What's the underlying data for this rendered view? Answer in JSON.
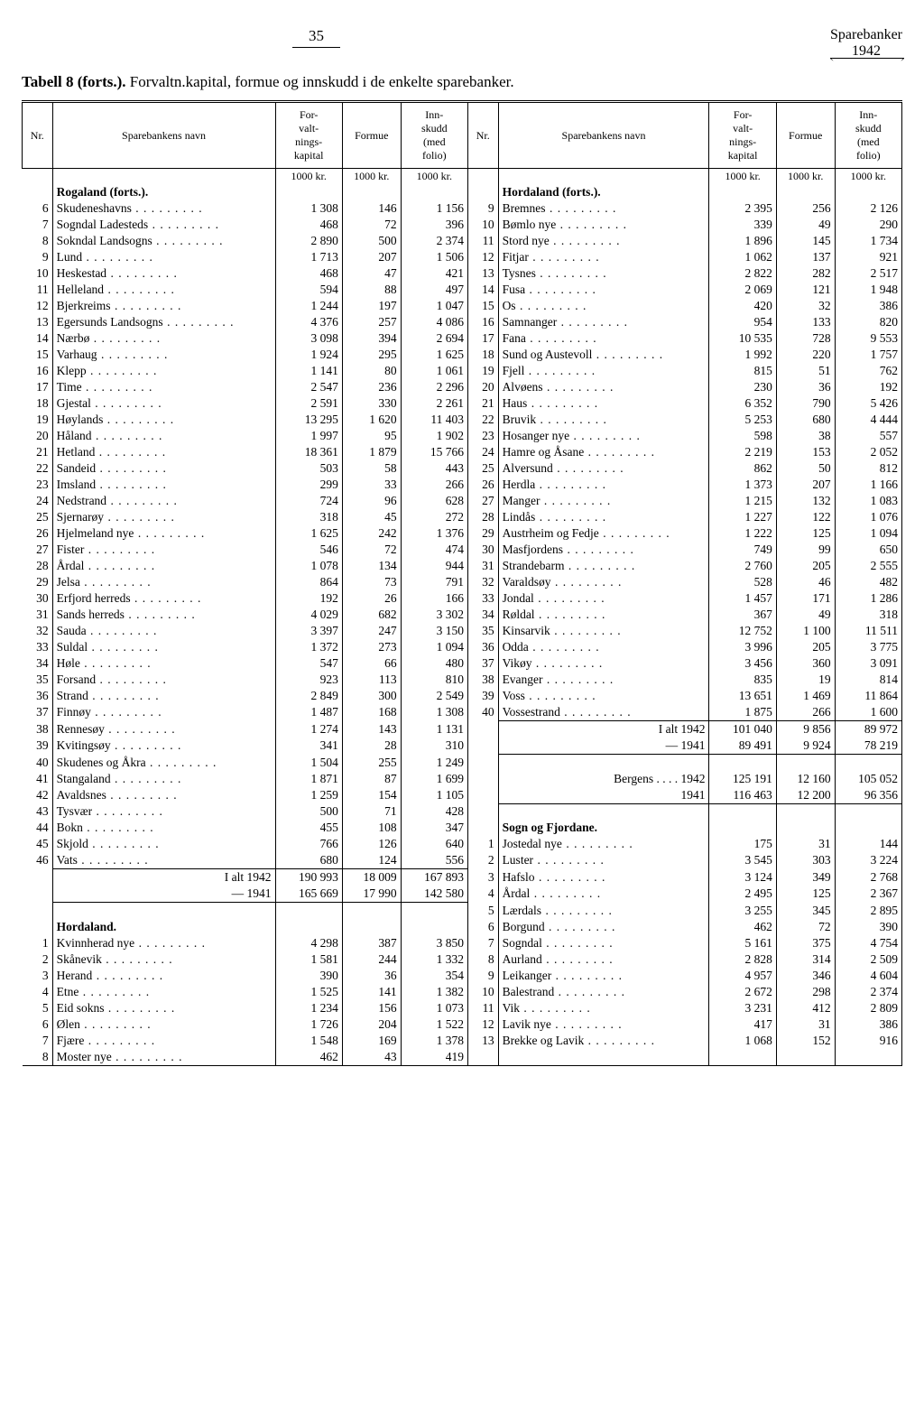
{
  "page_number": "35",
  "corner_title": "Sparebanker",
  "corner_year": "1942",
  "caption_bold": "Tabell 8 (forts.).",
  "caption_rest": "Forvaltn.kapital, formue og innskudd i de enkelte sparebanker.",
  "col_headers": {
    "nr": "Nr.",
    "name": "Sparebankens navn",
    "cap": "For-\nvalt-\nnings-\nkapital",
    "formue": "Formue",
    "inn": "Inn-\nskudd\n(med\nfolio)"
  },
  "units": "1000 kr.",
  "left": [
    {
      "section": "Rogaland (forts.)."
    },
    {
      "nr": 6,
      "name": "Skudeneshavns",
      "c": "1 308",
      "f": "146",
      "i": "1 156"
    },
    {
      "nr": 7,
      "name": "Sogndal Ladesteds",
      "c": "468",
      "f": "72",
      "i": "396"
    },
    {
      "nr": 8,
      "name": "Sokndal Landsogns",
      "c": "2 890",
      "f": "500",
      "i": "2 374"
    },
    {
      "nr": 9,
      "name": "Lund",
      "c": "1 713",
      "f": "207",
      "i": "1 506"
    },
    {
      "nr": 10,
      "name": "Heskestad",
      "c": "468",
      "f": "47",
      "i": "421"
    },
    {
      "nr": 11,
      "name": "Helleland",
      "c": "594",
      "f": "88",
      "i": "497"
    },
    {
      "nr": 12,
      "name": "Bjerkreims",
      "c": "1 244",
      "f": "197",
      "i": "1 047"
    },
    {
      "nr": 13,
      "name": "Egersunds Landsogns",
      "c": "4 376",
      "f": "257",
      "i": "4 086"
    },
    {
      "nr": 14,
      "name": "Nærbø",
      "c": "3 098",
      "f": "394",
      "i": "2 694"
    },
    {
      "nr": 15,
      "name": "Varhaug",
      "c": "1 924",
      "f": "295",
      "i": "1 625"
    },
    {
      "nr": 16,
      "name": "Klepp",
      "c": "1 141",
      "f": "80",
      "i": "1 061"
    },
    {
      "nr": 17,
      "name": "Time",
      "c": "2 547",
      "f": "236",
      "i": "2 296"
    },
    {
      "nr": 18,
      "name": "Gjestal",
      "c": "2 591",
      "f": "330",
      "i": "2 261"
    },
    {
      "nr": 19,
      "name": "Høylands",
      "c": "13 295",
      "f": "1 620",
      "i": "11 403"
    },
    {
      "nr": 20,
      "name": "Håland",
      "c": "1 997",
      "f": "95",
      "i": "1 902"
    },
    {
      "nr": 21,
      "name": "Hetland",
      "c": "18 361",
      "f": "1 879",
      "i": "15 766"
    },
    {
      "nr": 22,
      "name": "Sandeid",
      "c": "503",
      "f": "58",
      "i": "443"
    },
    {
      "nr": 23,
      "name": "Imsland",
      "c": "299",
      "f": "33",
      "i": "266"
    },
    {
      "nr": 24,
      "name": "Nedstrand",
      "c": "724",
      "f": "96",
      "i": "628"
    },
    {
      "nr": 25,
      "name": "Sjernarøy",
      "c": "318",
      "f": "45",
      "i": "272"
    },
    {
      "nr": 26,
      "name": "Hjelmeland nye",
      "c": "1 625",
      "f": "242",
      "i": "1 376"
    },
    {
      "nr": 27,
      "name": "Fister",
      "c": "546",
      "f": "72",
      "i": "474"
    },
    {
      "nr": 28,
      "name": "Årdal",
      "c": "1 078",
      "f": "134",
      "i": "944"
    },
    {
      "nr": 29,
      "name": "Jelsa",
      "c": "864",
      "f": "73",
      "i": "791"
    },
    {
      "nr": 30,
      "name": "Erfjord herreds",
      "c": "192",
      "f": "26",
      "i": "166"
    },
    {
      "nr": 31,
      "name": "Sands herreds",
      "c": "4 029",
      "f": "682",
      "i": "3 302"
    },
    {
      "nr": 32,
      "name": "Sauda",
      "c": "3 397",
      "f": "247",
      "i": "3 150"
    },
    {
      "nr": 33,
      "name": "Suldal",
      "c": "1 372",
      "f": "273",
      "i": "1 094"
    },
    {
      "nr": 34,
      "name": "Høle",
      "c": "547",
      "f": "66",
      "i": "480"
    },
    {
      "nr": 35,
      "name": "Forsand",
      "c": "923",
      "f": "113",
      "i": "810"
    },
    {
      "nr": 36,
      "name": "Strand",
      "c": "2 849",
      "f": "300",
      "i": "2 549"
    },
    {
      "nr": 37,
      "name": "Finnøy",
      "c": "1 487",
      "f": "168",
      "i": "1 308"
    },
    {
      "nr": 38,
      "name": "Rennesøy",
      "c": "1 274",
      "f": "143",
      "i": "1 131"
    },
    {
      "nr": 39,
      "name": "Kvitingsøy",
      "c": "341",
      "f": "28",
      "i": "310"
    },
    {
      "nr": 40,
      "name": "Skudenes og Åkra",
      "c": "1 504",
      "f": "255",
      "i": "1 249"
    },
    {
      "nr": 41,
      "name": "Stangaland",
      "c": "1 871",
      "f": "87",
      "i": "1 699"
    },
    {
      "nr": 42,
      "name": "Avaldsnes",
      "c": "1 259",
      "f": "154",
      "i": "1 105"
    },
    {
      "nr": 43,
      "name": "Tysvær",
      "c": "500",
      "f": "71",
      "i": "428"
    },
    {
      "nr": 44,
      "name": "Bokn",
      "c": "455",
      "f": "108",
      "i": "347"
    },
    {
      "nr": 45,
      "name": "Skjold",
      "c": "766",
      "f": "126",
      "i": "640"
    },
    {
      "nr": 46,
      "name": "Vats",
      "c": "680",
      "f": "124",
      "i": "556"
    },
    {
      "total": "I alt 1942",
      "c": "190 993",
      "f": "18 009",
      "i": "167 893",
      "rule_top": true
    },
    {
      "total": "— 1941",
      "c": "165 669",
      "f": "17 990",
      "i": "142 580",
      "rule_bot": true
    },
    {
      "blank": true
    },
    {
      "section": "Hordaland."
    },
    {
      "nr": 1,
      "name": "Kvinnherad nye",
      "c": "4 298",
      "f": "387",
      "i": "3 850"
    },
    {
      "nr": 2,
      "name": "Skånevik",
      "c": "1 581",
      "f": "244",
      "i": "1 332"
    },
    {
      "nr": 3,
      "name": "Herand",
      "c": "390",
      "f": "36",
      "i": "354"
    },
    {
      "nr": 4,
      "name": "Etne",
      "c": "1 525",
      "f": "141",
      "i": "1 382"
    },
    {
      "nr": 5,
      "name": "Eid sokns",
      "c": "1 234",
      "f": "156",
      "i": "1 073"
    },
    {
      "nr": 6,
      "name": "Ølen",
      "c": "1 726",
      "f": "204",
      "i": "1 522"
    },
    {
      "nr": 7,
      "name": "Fjære",
      "c": "1 548",
      "f": "169",
      "i": "1 378"
    },
    {
      "nr": 8,
      "name": "Moster nye",
      "c": "462",
      "f": "43",
      "i": "419"
    }
  ],
  "right": [
    {
      "section": "Hordaland (forts.)."
    },
    {
      "nr": 9,
      "name": "Bremnes",
      "c": "2 395",
      "f": "256",
      "i": "2 126"
    },
    {
      "nr": 10,
      "name": "Bømlo nye",
      "c": "339",
      "f": "49",
      "i": "290"
    },
    {
      "nr": 11,
      "name": "Stord nye",
      "c": "1 896",
      "f": "145",
      "i": "1 734"
    },
    {
      "nr": 12,
      "name": "Fitjar",
      "c": "1 062",
      "f": "137",
      "i": "921"
    },
    {
      "nr": 13,
      "name": "Tysnes",
      "c": "2 822",
      "f": "282",
      "i": "2 517"
    },
    {
      "nr": 14,
      "name": "Fusa",
      "c": "2 069",
      "f": "121",
      "i": "1 948"
    },
    {
      "nr": 15,
      "name": "Os",
      "c": "420",
      "f": "32",
      "i": "386"
    },
    {
      "nr": 16,
      "name": "Samnanger",
      "c": "954",
      "f": "133",
      "i": "820"
    },
    {
      "nr": 17,
      "name": "Fana",
      "c": "10 535",
      "f": "728",
      "i": "9 553"
    },
    {
      "nr": 18,
      "name": "Sund og Austevoll",
      "c": "1 992",
      "f": "220",
      "i": "1 757"
    },
    {
      "nr": 19,
      "name": "Fjell",
      "c": "815",
      "f": "51",
      "i": "762"
    },
    {
      "nr": 20,
      "name": "Alvøens",
      "c": "230",
      "f": "36",
      "i": "192"
    },
    {
      "nr": 21,
      "name": "Haus",
      "c": "6 352",
      "f": "790",
      "i": "5 426"
    },
    {
      "nr": 22,
      "name": "Bruvik",
      "c": "5 253",
      "f": "680",
      "i": "4 444"
    },
    {
      "nr": 23,
      "name": "Hosanger nye",
      "c": "598",
      "f": "38",
      "i": "557"
    },
    {
      "nr": 24,
      "name": "Hamre og Åsane",
      "c": "2 219",
      "f": "153",
      "i": "2 052"
    },
    {
      "nr": 25,
      "name": "Alversund",
      "c": "862",
      "f": "50",
      "i": "812"
    },
    {
      "nr": 26,
      "name": "Herdla",
      "c": "1 373",
      "f": "207",
      "i": "1 166"
    },
    {
      "nr": 27,
      "name": "Manger",
      "c": "1 215",
      "f": "132",
      "i": "1 083"
    },
    {
      "nr": 28,
      "name": "Lindås",
      "c": "1 227",
      "f": "122",
      "i": "1 076"
    },
    {
      "nr": 29,
      "name": "Austrheim og Fedje",
      "c": "1 222",
      "f": "125",
      "i": "1 094"
    },
    {
      "nr": 30,
      "name": "Masfjordens",
      "c": "749",
      "f": "99",
      "i": "650"
    },
    {
      "nr": 31,
      "name": "Strandebarm",
      "c": "2 760",
      "f": "205",
      "i": "2 555"
    },
    {
      "nr": 32,
      "name": "Varaldsøy",
      "c": "528",
      "f": "46",
      "i": "482"
    },
    {
      "nr": 33,
      "name": "Jondal",
      "c": "1 457",
      "f": "171",
      "i": "1 286"
    },
    {
      "nr": 34,
      "name": "Røldal",
      "c": "367",
      "f": "49",
      "i": "318"
    },
    {
      "nr": 35,
      "name": "Kinsarvik",
      "c": "12 752",
      "f": "1 100",
      "i": "11 511"
    },
    {
      "nr": 36,
      "name": "Odda",
      "c": "3 996",
      "f": "205",
      "i": "3 775"
    },
    {
      "nr": 37,
      "name": "Vikøy",
      "c": "3 456",
      "f": "360",
      "i": "3 091"
    },
    {
      "nr": 38,
      "name": "Evanger",
      "c": "835",
      "f": "19",
      "i": "814"
    },
    {
      "nr": 39,
      "name": "Voss",
      "c": "13 651",
      "f": "1 469",
      "i": "11 864"
    },
    {
      "nr": 40,
      "name": "Vossestrand",
      "c": "1 875",
      "f": "266",
      "i": "1 600"
    },
    {
      "total": "I alt 1942",
      "c": "101 040",
      "f": "9 856",
      "i": "89 972",
      "rule_top": true
    },
    {
      "total": "— 1941",
      "c": "89 491",
      "f": "9 924",
      "i": "78 219",
      "rule_bot": true
    },
    {
      "blank": true
    },
    {
      "total_left": "Bergens . . . . 1942",
      "c": "125 191",
      "f": "12 160",
      "i": "105 052"
    },
    {
      "total_left": "1941",
      "c": "116 463",
      "f": "12 200",
      "i": "96 356",
      "rule_bot": true
    },
    {
      "blank": true
    },
    {
      "section": "Sogn og Fjordane."
    },
    {
      "nr": 1,
      "name": "Jostedal nye",
      "c": "175",
      "f": "31",
      "i": "144"
    },
    {
      "nr": 2,
      "name": "Luster",
      "c": "3 545",
      "f": "303",
      "i": "3 224"
    },
    {
      "nr": 3,
      "name": "Hafslo",
      "c": "3 124",
      "f": "349",
      "i": "2 768"
    },
    {
      "nr": 4,
      "name": "Årdal",
      "c": "2 495",
      "f": "125",
      "i": "2 367"
    },
    {
      "nr": 5,
      "name": "Lærdals",
      "c": "3 255",
      "f": "345",
      "i": "2 895"
    },
    {
      "nr": 6,
      "name": "Borgund",
      "c": "462",
      "f": "72",
      "i": "390"
    },
    {
      "nr": 7,
      "name": "Sogndal",
      "c": "5 161",
      "f": "375",
      "i": "4 754"
    },
    {
      "nr": 8,
      "name": "Aurland",
      "c": "2 828",
      "f": "314",
      "i": "2 509"
    },
    {
      "nr": 9,
      "name": "Leikanger",
      "c": "4 957",
      "f": "346",
      "i": "4 604"
    },
    {
      "nr": 10,
      "name": "Balestrand",
      "c": "2 672",
      "f": "298",
      "i": "2 374"
    },
    {
      "nr": 11,
      "name": "Vik",
      "c": "3 231",
      "f": "412",
      "i": "2 809"
    },
    {
      "nr": 12,
      "name": "Lavik nye",
      "c": "417",
      "f": "31",
      "i": "386"
    },
    {
      "nr": 13,
      "name": "Brekke og Lavik",
      "c": "1 068",
      "f": "152",
      "i": "916"
    }
  ]
}
